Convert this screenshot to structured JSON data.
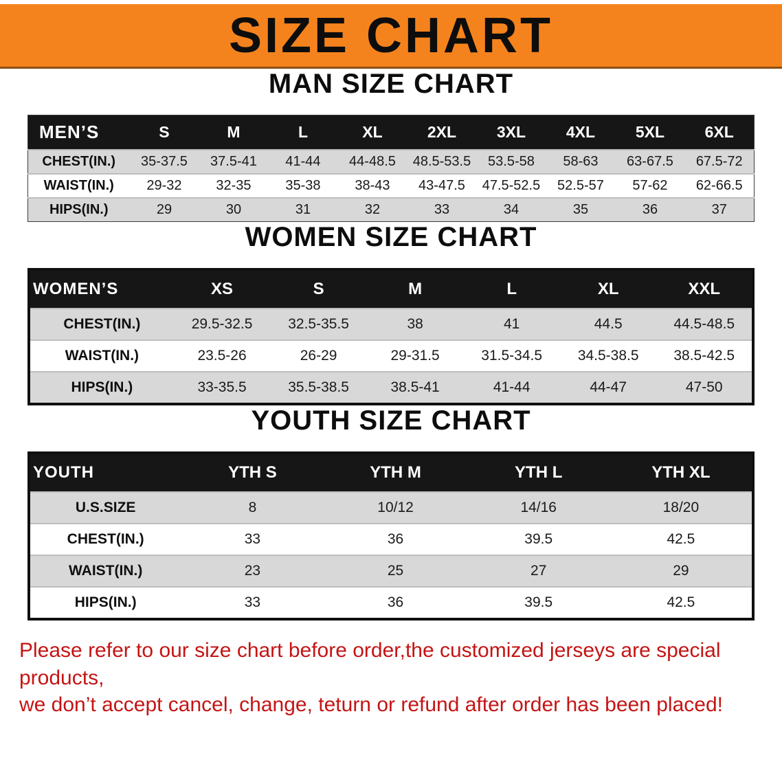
{
  "banner": {
    "title": "SIZE CHART"
  },
  "colors": {
    "banner_bg": "#f5831d",
    "header_bg": "#161616",
    "row_alt": "#d8d8d8",
    "disclaimer_red": "#c51414"
  },
  "sections": {
    "men": {
      "heading": "MAN SIZE CHART",
      "table": {
        "header": [
          "MEN’S",
          "S",
          "M",
          "L",
          "XL",
          "2XL",
          "3XL",
          "4XL",
          "5XL",
          "6XL"
        ],
        "rows": [
          {
            "label": "CHEST(IN.)",
            "values": [
              "35-37.5",
              "37.5-41",
              "41-44",
              "44-48.5",
              "48.5-53.5",
              "53.5-58",
              "58-63",
              "63-67.5",
              "67.5-72"
            ]
          },
          {
            "label": "WAIST(IN.)",
            "values": [
              "29-32",
              "32-35",
              "35-38",
              "38-43",
              "43-47.5",
              "47.5-52.5",
              "52.5-57",
              "57-62",
              "62-66.5"
            ]
          },
          {
            "label": "HIPS(IN.)",
            "values": [
              "29",
              "30",
              "31",
              "32",
              "33",
              "34",
              "35",
              "36",
              "37"
            ]
          }
        ]
      }
    },
    "women": {
      "heading": "WOMEN SIZE CHART",
      "table": {
        "header": [
          "WOMEN’S",
          "XS",
          "S",
          "M",
          "L",
          "XL",
          "XXL"
        ],
        "rows": [
          {
            "label": "CHEST(IN.)",
            "values": [
              "29.5-32.5",
              "32.5-35.5",
              "38",
              "41",
              "44.5",
              "44.5-48.5"
            ]
          },
          {
            "label": "WAIST(IN.)",
            "values": [
              "23.5-26",
              "26-29",
              "29-31.5",
              "31.5-34.5",
              "34.5-38.5",
              "38.5-42.5"
            ]
          },
          {
            "label": "HIPS(IN.)",
            "values": [
              "33-35.5",
              "35.5-38.5",
              "38.5-41",
              "41-44",
              "44-47",
              "47-50"
            ]
          }
        ]
      }
    },
    "youth": {
      "heading": "YOUTH SIZE CHART",
      "table": {
        "header": [
          "YOUTH",
          "YTH S",
          "YTH M",
          "YTH L",
          "YTH XL"
        ],
        "rows": [
          {
            "label": "U.S.SIZE",
            "values": [
              "8",
              "10/12",
              "14/16",
              "18/20"
            ]
          },
          {
            "label": "CHEST(IN.)",
            "values": [
              "33",
              "36",
              "39.5",
              "42.5"
            ]
          },
          {
            "label": "WAIST(IN.)",
            "values": [
              "23",
              "25",
              "27",
              "29"
            ]
          },
          {
            "label": "HIPS(IN.)",
            "values": [
              "33",
              "36",
              "39.5",
              "42.5"
            ]
          }
        ]
      }
    }
  },
  "disclaimer": {
    "line1": "Please refer to our size chart before order,the customized jerseys are special products,",
    "line2": "we don’t accept cancel, change, teturn or refund after order has been placed!"
  }
}
